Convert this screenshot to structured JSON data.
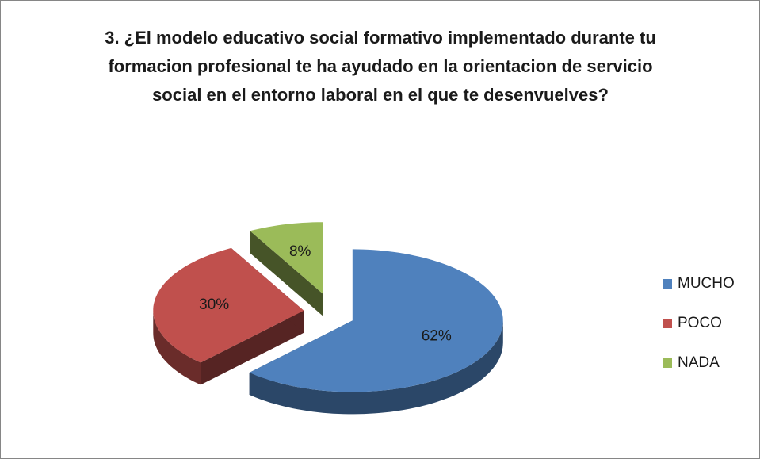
{
  "chart_data": {
    "type": "pie",
    "title": "3. ¿El modelo educativo social formativo implementado durante tu formacion profesional te ha ayudado en la orientacion de servicio social en el entorno laboral en el que te desenvuelves?",
    "categories": [
      "MUCHO",
      "POCO",
      "NADA"
    ],
    "values": [
      62,
      30,
      8
    ],
    "value_labels": [
      "62%",
      "30%",
      "8%"
    ],
    "colors": [
      "#4f81bd",
      "#c0504d",
      "#9bbb59"
    ],
    "legend": "right"
  }
}
